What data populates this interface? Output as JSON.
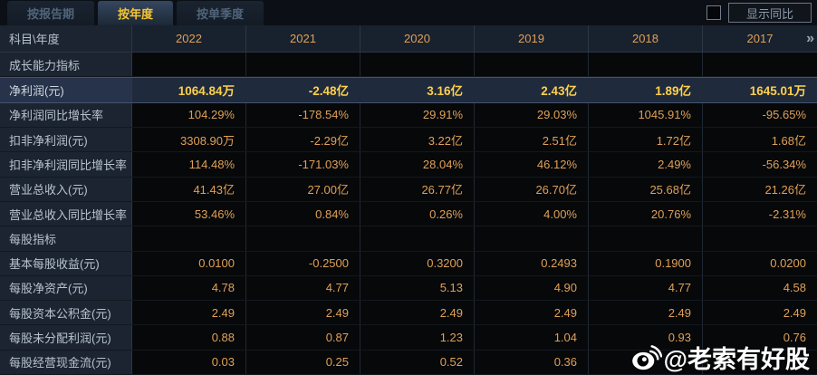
{
  "tabs": [
    {
      "label": "按报告期",
      "active": false
    },
    {
      "label": "按年度",
      "active": true
    },
    {
      "label": "按单季度",
      "active": false
    }
  ],
  "show_yoy": {
    "label": "显示同比",
    "checked": false
  },
  "table": {
    "header": {
      "first_col": "科目\\年度",
      "years": [
        "2022",
        "2021",
        "2020",
        "2019",
        "2018",
        "2017"
      ],
      "more_icon": "»"
    },
    "rows": [
      {
        "type": "section",
        "label": "成长能力指标"
      },
      {
        "type": "data",
        "label": "净利润(元)",
        "highlight": true,
        "values": [
          "1064.84万",
          "-2.48亿",
          "3.16亿",
          "2.43亿",
          "1.89亿",
          "1645.01万"
        ]
      },
      {
        "type": "data",
        "label": "净利润同比增长率",
        "values": [
          "104.29%",
          "-178.54%",
          "29.91%",
          "29.03%",
          "1045.91%",
          "-95.65%"
        ]
      },
      {
        "type": "data",
        "label": "扣非净利润(元)",
        "values": [
          "3308.90万",
          "-2.29亿",
          "3.22亿",
          "2.51亿",
          "1.72亿",
          "1.68亿"
        ]
      },
      {
        "type": "data",
        "label": "扣非净利润同比增长率",
        "values": [
          "114.48%",
          "-171.03%",
          "28.04%",
          "46.12%",
          "2.49%",
          "-56.34%"
        ]
      },
      {
        "type": "data",
        "label": "营业总收入(元)",
        "values": [
          "41.43亿",
          "27.00亿",
          "26.77亿",
          "26.70亿",
          "25.68亿",
          "21.26亿"
        ]
      },
      {
        "type": "data",
        "label": "营业总收入同比增长率",
        "values": [
          "53.46%",
          "0.84%",
          "0.26%",
          "4.00%",
          "20.76%",
          "-2.31%"
        ]
      },
      {
        "type": "section",
        "label": "每股指标"
      },
      {
        "type": "data",
        "label": "基本每股收益(元)",
        "values": [
          "0.0100",
          "-0.2500",
          "0.3200",
          "0.2493",
          "0.1900",
          "0.0200"
        ]
      },
      {
        "type": "data",
        "label": "每股净资产(元)",
        "values": [
          "4.78",
          "4.77",
          "5.13",
          "4.90",
          "4.77",
          "4.58"
        ]
      },
      {
        "type": "data",
        "label": "每股资本公积金(元)",
        "values": [
          "2.49",
          "2.49",
          "2.49",
          "2.49",
          "2.49",
          "2.49"
        ]
      },
      {
        "type": "data",
        "label": "每股未分配利润(元)",
        "values": [
          "0.88",
          "0.87",
          "1.23",
          "1.04",
          "0.93",
          "0.76"
        ]
      },
      {
        "type": "data",
        "label": "每股经营现金流(元)",
        "values": [
          "0.03",
          "0.25",
          "0.52",
          "0.36",
          "",
          ""
        ]
      }
    ]
  },
  "watermark": {
    "text": "@老索有好股",
    "icon": "weibo-logo"
  },
  "colors": {
    "accent_yellow": "#f5c431",
    "value_orange": "#dfa058",
    "highlight_value": "#ffd04a",
    "label_bg": "#1b2430",
    "highlight_bg": "#1f2a3d"
  }
}
